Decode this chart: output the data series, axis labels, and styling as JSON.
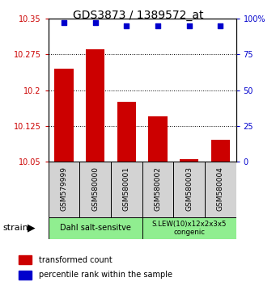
{
  "title": "GDS3873 / 1389572_at",
  "samples": [
    "GSM579999",
    "GSM580000",
    "GSM580001",
    "GSM580002",
    "GSM580003",
    "GSM580004"
  ],
  "transformed_counts": [
    10.245,
    10.285,
    10.175,
    10.145,
    10.055,
    10.095
  ],
  "percentile_ranks": [
    97,
    97,
    95,
    95,
    95,
    95
  ],
  "ylim_left": [
    10.05,
    10.35
  ],
  "ylim_right": [
    0,
    100
  ],
  "yticks_left": [
    10.05,
    10.125,
    10.2,
    10.275,
    10.35
  ],
  "ytick_labels_left": [
    "10.05",
    "10.125",
    "10.2",
    "10.275",
    "10.35"
  ],
  "yticks_right": [
    0,
    25,
    50,
    75,
    100
  ],
  "ytick_labels_right": [
    "0",
    "25",
    "50",
    "75",
    "100%"
  ],
  "bar_color": "#cc0000",
  "dot_color": "#0000cc",
  "bar_width": 0.6,
  "group1_label": "Dahl salt-sensitve",
  "group2_label": "S.LEW(10)x12x2x3x5\ncongenic",
  "group_color": "#90ee90",
  "sample_box_color": "#d3d3d3",
  "strain_label": "strain",
  "legend_red_label": "transformed count",
  "legend_blue_label": "percentile rank within the sample",
  "background_color": "#ffffff"
}
